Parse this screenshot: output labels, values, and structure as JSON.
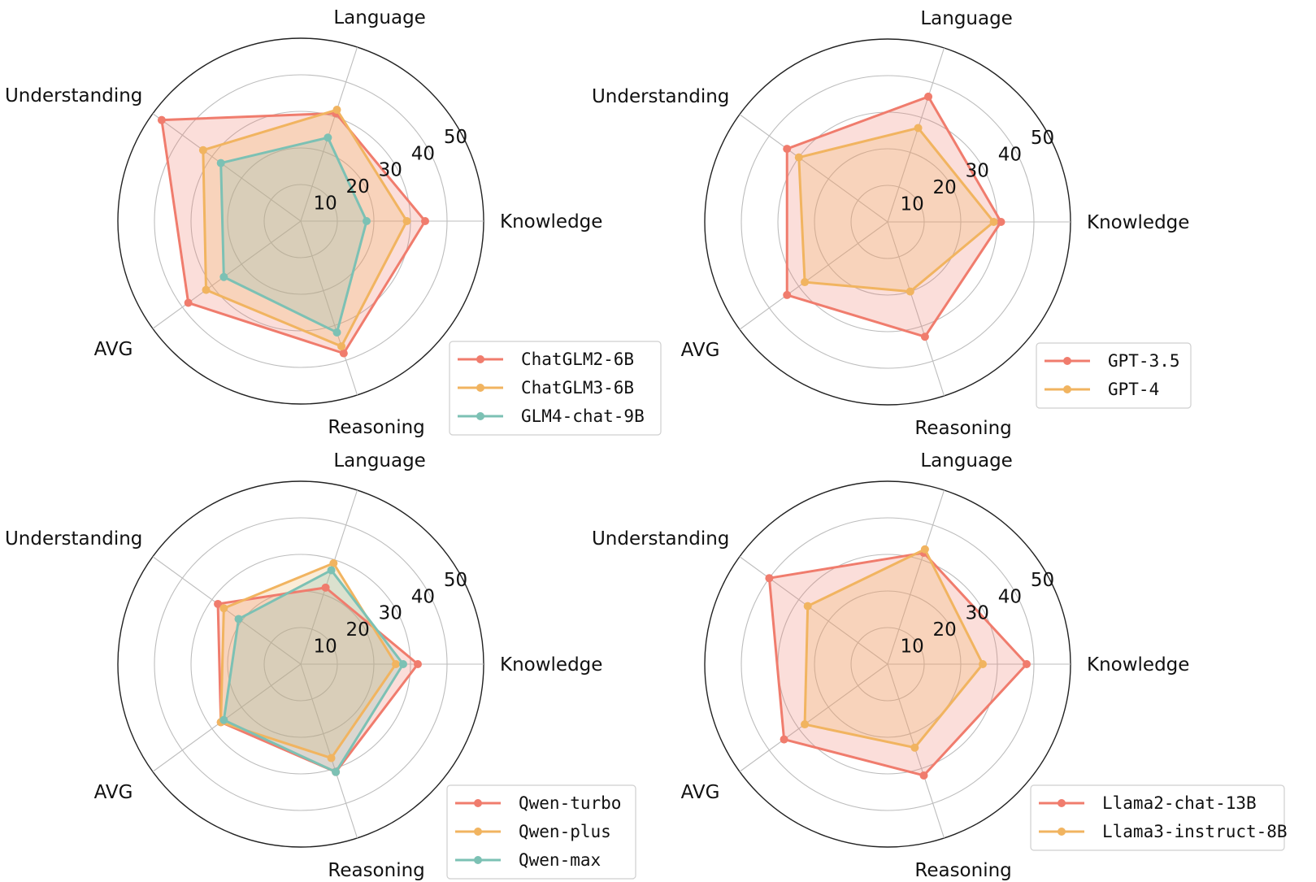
{
  "colors": {
    "red": "#f07c6d",
    "orange": "#f1b460",
    "teal": "#7cc1b4"
  },
  "chart_data": [
    {
      "type": "radar",
      "axes": [
        "Knowledge",
        "Language",
        "Understanding",
        "AVG",
        "Reasoning"
      ],
      "radial_ticks": [
        "10",
        "20",
        "30",
        "40",
        "50"
      ],
      "rlim": [
        0,
        50
      ],
      "legend_position": "bottom-right",
      "series": [
        {
          "name": "ChatGLM2-6B",
          "color": "#f07c6d",
          "values": [
            34,
            31,
            47,
            38,
            38
          ]
        },
        {
          "name": "ChatGLM3-6B",
          "color": "#f1b460",
          "values": [
            29,
            32,
            33,
            32,
            36
          ]
        },
        {
          "name": "GLM4-chat-9B",
          "color": "#7cc1b4",
          "values": [
            18,
            24,
            27,
            26,
            32
          ]
        }
      ]
    },
    {
      "type": "radar",
      "axes": [
        "Knowledge",
        "Language",
        "Understanding",
        "AVG",
        "Reasoning"
      ],
      "radial_ticks": [
        "10",
        "20",
        "30",
        "40",
        "50"
      ],
      "rlim": [
        0,
        50
      ],
      "legend_position": "bottom-right",
      "series": [
        {
          "name": "GPT-3.5",
          "color": "#f07c6d",
          "values": [
            31,
            36,
            34,
            34,
            33
          ]
        },
        {
          "name": "GPT-4",
          "color": "#f1b460",
          "values": [
            29,
            27,
            30,
            28,
            20
          ]
        }
      ]
    },
    {
      "type": "radar",
      "axes": [
        "Knowledge",
        "Language",
        "Understanding",
        "AVG",
        "Reasoning"
      ],
      "radial_ticks": [
        "10",
        "20",
        "30",
        "40",
        "50"
      ],
      "rlim": [
        0,
        50
      ],
      "legend_position": "bottom-right",
      "series": [
        {
          "name": "Qwen-turbo",
          "color": "#f07c6d",
          "values": [
            32,
            22,
            28,
            27,
            31
          ]
        },
        {
          "name": "Qwen-plus",
          "color": "#f1b460",
          "values": [
            26,
            29,
            26,
            27,
            27
          ]
        },
        {
          "name": "Qwen-max",
          "color": "#7cc1b4",
          "values": [
            28,
            27,
            21,
            26,
            31
          ]
        }
      ]
    },
    {
      "type": "radar",
      "axes": [
        "Knowledge",
        "Language",
        "Understanding",
        "AVG",
        "Reasoning"
      ],
      "radial_ticks": [
        "10",
        "20",
        "30",
        "40",
        "50"
      ],
      "rlim": [
        0,
        50
      ],
      "legend_position": "bottom-right",
      "series": [
        {
          "name": "Llama2-chat-13B",
          "color": "#f07c6d",
          "values": [
            38,
            32,
            40,
            35,
            32
          ]
        },
        {
          "name": "Llama3-instruct-8B",
          "color": "#f1b460",
          "values": [
            26,
            33,
            27,
            28,
            24
          ]
        }
      ]
    }
  ]
}
